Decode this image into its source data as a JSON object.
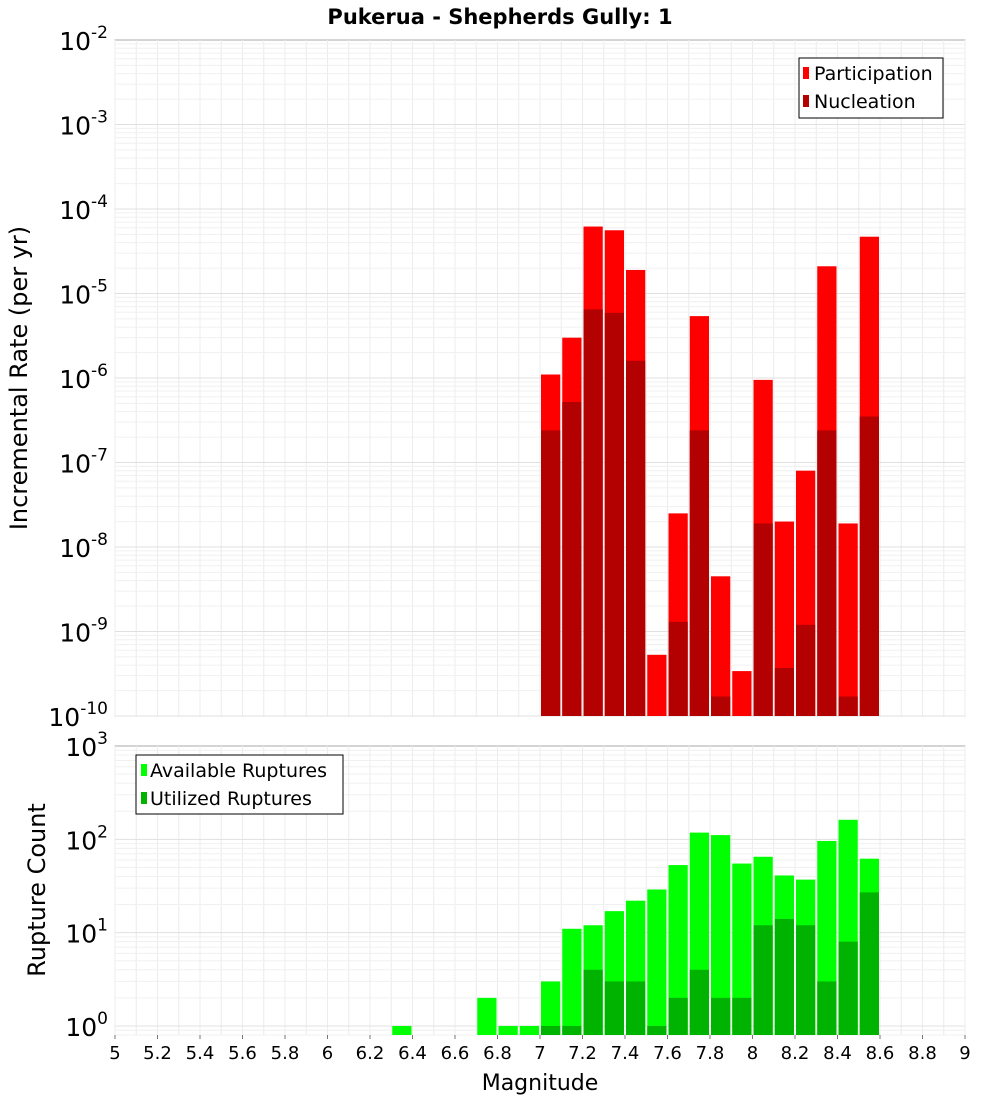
{
  "chart_data": [
    {
      "type": "bar",
      "title": "Pukerua - Shepherds Gully: 1",
      "ylabel": "Incremental Rate (per yr)",
      "yscale": "log",
      "ylim": [
        1e-10,
        0.01
      ],
      "xlim": [
        5,
        9
      ],
      "bar_width": 0.1,
      "grid": true,
      "legend_position": "top-right",
      "y_tick_exponents": [
        "-10",
        "-9",
        "-8",
        "-7",
        "-6",
        "-5",
        "-4",
        "-3",
        "-2"
      ],
      "y_tick_base": "10",
      "series": [
        {
          "name": "Participation",
          "color": "#ff0000",
          "x": [
            7.05,
            7.15,
            7.25,
            7.35,
            7.45,
            7.55,
            7.65,
            7.75,
            7.85,
            7.95,
            8.05,
            8.15,
            8.25,
            8.35,
            8.45,
            8.55
          ],
          "values": [
            1.1e-06,
            3e-06,
            6.2e-05,
            5.6e-05,
            1.9e-05,
            5.3e-10,
            2.5e-08,
            5.4e-06,
            4.5e-09,
            3.4e-10,
            9.5e-07,
            2e-08,
            8e-08,
            2.1e-05,
            1.9e-08,
            4.7e-05
          ]
        },
        {
          "name": "Nucleation",
          "color": "#b30000",
          "x": [
            7.05,
            7.15,
            7.25,
            7.35,
            7.45,
            7.55,
            7.65,
            7.75,
            7.85,
            7.95,
            8.05,
            8.15,
            8.25,
            8.35,
            8.45,
            8.55
          ],
          "values": [
            2.4e-07,
            5.2e-07,
            6.5e-06,
            5.9e-06,
            1.6e-06,
            0,
            1.3e-09,
            2.4e-07,
            1.7e-10,
            0,
            1.9e-08,
            3.7e-10,
            1.2e-09,
            2.4e-07,
            1.7e-10,
            3.5e-07
          ]
        }
      ]
    },
    {
      "type": "bar",
      "ylabel": "Rupture Count",
      "xlabel": "Magnitude",
      "yscale": "log",
      "ylim": [
        0.8,
        1000
      ],
      "xlim": [
        5,
        9
      ],
      "bar_width": 0.1,
      "grid": true,
      "legend_position": "top-left",
      "x_ticks": [
        "5",
        "5.2",
        "5.4",
        "5.6",
        "5.8",
        "6",
        "6.2",
        "6.4",
        "6.6",
        "6.8",
        "7",
        "7.2",
        "7.4",
        "7.6",
        "7.8",
        "8",
        "8.2",
        "8.4",
        "8.6",
        "8.8",
        "9"
      ],
      "y_tick_exponents": [
        "0",
        "1",
        "2",
        "3"
      ],
      "y_tick_base": "10",
      "series": [
        {
          "name": "Available Ruptures",
          "color": "#00ff00",
          "x": [
            6.35,
            6.75,
            6.85,
            6.95,
            7.05,
            7.15,
            7.25,
            7.35,
            7.45,
            7.55,
            7.65,
            7.75,
            7.85,
            7.95,
            8.05,
            8.15,
            8.25,
            8.35,
            8.45,
            8.55
          ],
          "values": [
            1,
            2,
            1,
            1,
            3,
            11,
            12,
            17,
            22,
            29,
            53,
            118,
            111,
            55,
            65,
            41,
            37,
            96,
            162,
            62
          ]
        },
        {
          "name": "Utilized Ruptures",
          "color": "#00b300",
          "x": [
            6.35,
            6.75,
            6.85,
            6.95,
            7.05,
            7.15,
            7.25,
            7.35,
            7.45,
            7.55,
            7.65,
            7.75,
            7.85,
            7.95,
            8.05,
            8.15,
            8.25,
            8.35,
            8.45,
            8.55
          ],
          "values": [
            0,
            0,
            0,
            0,
            1,
            1,
            4,
            3,
            3,
            1,
            2,
            4,
            2,
            2,
            12,
            14,
            12,
            3,
            8,
            27
          ]
        }
      ]
    }
  ]
}
